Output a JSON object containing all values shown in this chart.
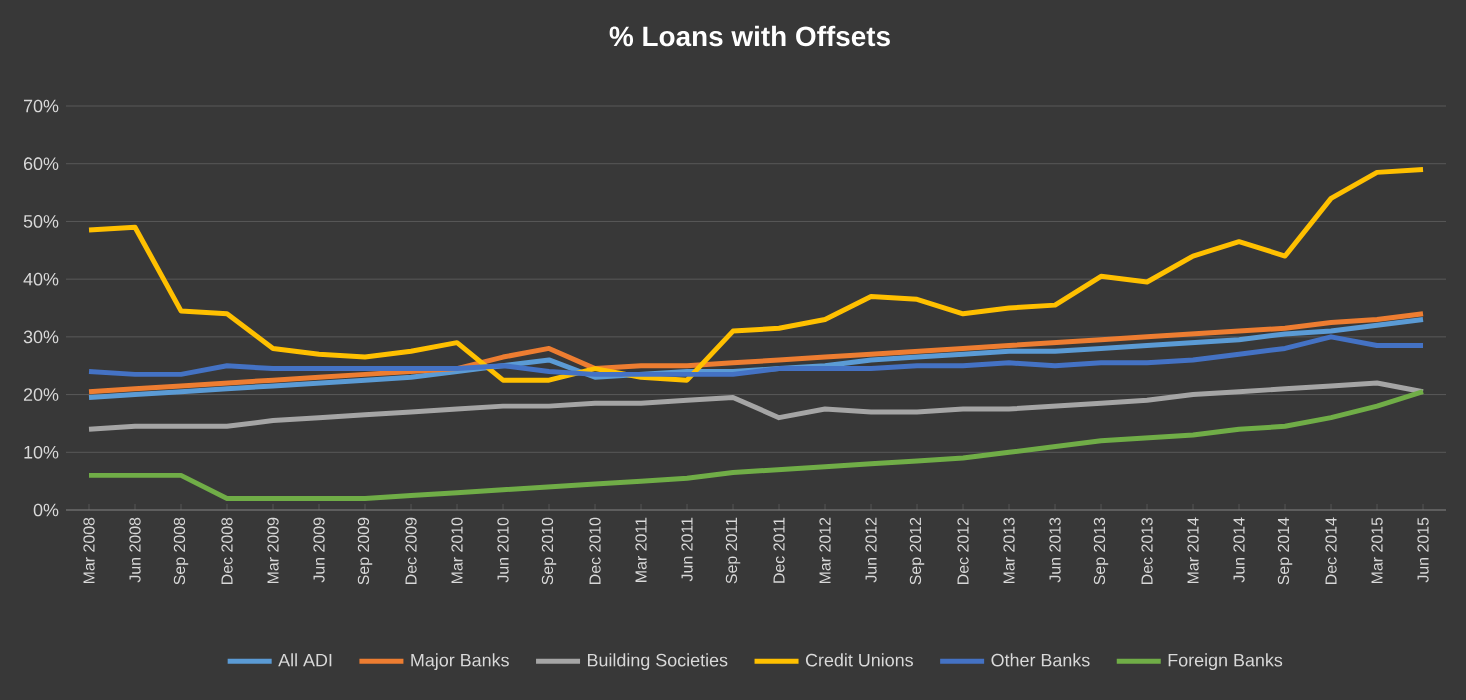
{
  "chart_data": {
    "type": "line",
    "title": "% Loans with Offsets",
    "categories": [
      "Mar 2008",
      "Jun 2008",
      "Sep 2008",
      "Dec 2008",
      "Mar 2009",
      "Jun 2009",
      "Sep 2009",
      "Dec 2009",
      "Mar 2010",
      "Jun 2010",
      "Sep 2010",
      "Dec 2010",
      "Mar 2011",
      "Jun 2011",
      "Sep 2011",
      "Dec 2011",
      "Mar 2012",
      "Jun 2012",
      "Sep 2012",
      "Dec 2012",
      "Mar 2013",
      "Jun 2013",
      "Sep 2013",
      "Dec 2013",
      "Mar 2014",
      "Jun 2014",
      "Sep 2014",
      "Dec 2014",
      "Mar 2015",
      "Jun 2015"
    ],
    "series": [
      {
        "name": "All ADI",
        "color": "#5b9bd5",
        "values": [
          19.5,
          20,
          20.5,
          21,
          21.5,
          22,
          22.5,
          23,
          24,
          25,
          26,
          23,
          23.5,
          24,
          24,
          24.5,
          25,
          26,
          26.5,
          27,
          27.5,
          27.5,
          28,
          28.5,
          29,
          29.5,
          30.5,
          31,
          32,
          33
        ]
      },
      {
        "name": "Major Banks",
        "color": "#ed7d31",
        "values": [
          20.5,
          21,
          21.5,
          22,
          22.5,
          23,
          23.5,
          24,
          24.5,
          26.5,
          28,
          24.5,
          25,
          25,
          25.5,
          26,
          26.5,
          27,
          27.5,
          28,
          28.5,
          29,
          29.5,
          30,
          30.5,
          31,
          31.5,
          32.5,
          33,
          34
        ]
      },
      {
        "name": "Building Societies",
        "color": "#a5a5a5",
        "values": [
          14,
          14.5,
          14.5,
          14.5,
          15.5,
          16,
          16.5,
          17,
          17.5,
          18,
          18,
          18.5,
          18.5,
          19,
          19.5,
          16,
          17.5,
          17,
          17,
          17.5,
          17.5,
          18,
          18.5,
          19,
          20,
          20.5,
          21,
          21.5,
          22,
          20.5
        ]
      },
      {
        "name": "Credit Unions",
        "color": "#ffc000",
        "values": [
          48.5,
          49,
          34.5,
          34,
          28,
          27,
          26.5,
          27.5,
          29,
          22.5,
          22.5,
          24.5,
          23,
          22.5,
          31,
          31.5,
          33,
          37,
          36.5,
          34,
          35,
          35.5,
          40.5,
          39.5,
          44,
          46.5,
          44,
          54,
          58.5,
          59
        ]
      },
      {
        "name": "Other Banks",
        "color": "#4472c4",
        "values": [
          24,
          23.5,
          23.5,
          25,
          24.5,
          24.5,
          24.5,
          24.5,
          24.5,
          25,
          24,
          23.5,
          23.5,
          23.5,
          23.5,
          24.5,
          24.5,
          24.5,
          25,
          25,
          25.5,
          25,
          25.5,
          25.5,
          26,
          27,
          28,
          30,
          28.5,
          28.5
        ]
      },
      {
        "name": "Foreign Banks",
        "color": "#70ad47",
        "values": [
          6,
          6,
          6,
          2,
          2,
          2,
          2,
          2.5,
          3,
          3.5,
          4,
          4.5,
          5,
          5.5,
          6.5,
          7,
          7.5,
          8,
          8.5,
          9,
          10,
          11,
          12,
          12.5,
          13,
          14,
          14.5,
          16,
          18,
          20.5
        ]
      }
    ],
    "ylim": [
      0,
      70
    ],
    "yticks": [
      {
        "value": 0,
        "label": "0%"
      },
      {
        "value": 10,
        "label": "10%"
      },
      {
        "value": 20,
        "label": "20%"
      },
      {
        "value": 30,
        "label": "30%"
      },
      {
        "value": 40,
        "label": "40%"
      },
      {
        "value": 50,
        "label": "50%"
      },
      {
        "value": 60,
        "label": "60%"
      },
      {
        "value": 70,
        "label": "70%"
      }
    ],
    "grid": "y",
    "legend": "bottom",
    "marker": "none",
    "line_style": "solid"
  }
}
